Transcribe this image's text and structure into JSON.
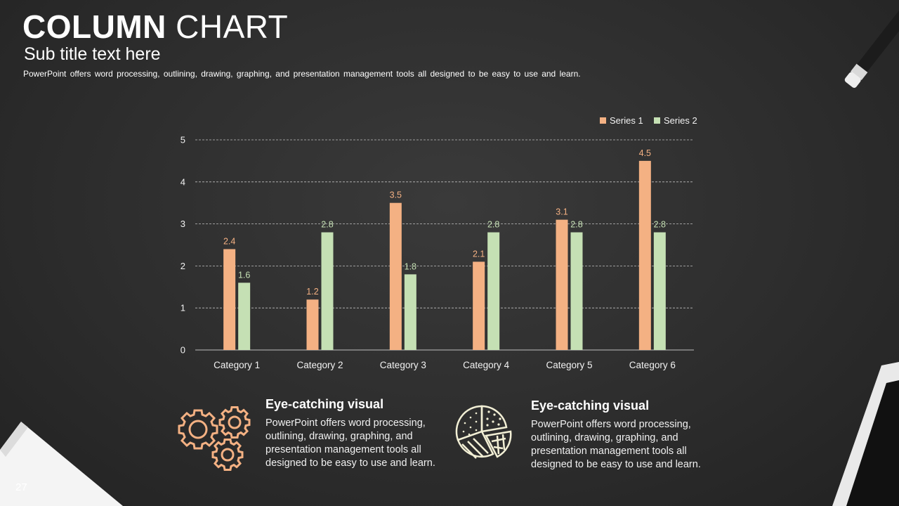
{
  "header": {
    "title_bold": "COLUMN",
    "title_light": "CHART",
    "subtitle": "Sub title text here",
    "description": "PowerPoint offers word processing, outlining, drawing, graphing, and presentation management tools all designed to be easy to use and learn."
  },
  "page_number": "27",
  "colors": {
    "series1": "#F4B183",
    "series2": "#C5E0B4",
    "grid": "#bfbfbf",
    "icon_gear": "#F4B183",
    "icon_pie": "#F2EFD5"
  },
  "chart_data": {
    "type": "bar",
    "categories": [
      "Category 1",
      "Category 2",
      "Category 3",
      "Category 4",
      "Category 5",
      "Category 6"
    ],
    "series": [
      {
        "name": "Series 1",
        "values": [
          2.4,
          1.2,
          3.5,
          2.1,
          3.1,
          4.5
        ]
      },
      {
        "name": "Series 2",
        "values": [
          1.6,
          2.8,
          1.8,
          2.8,
          2.8,
          2.8
        ]
      }
    ],
    "yticks": [
      0,
      1,
      2,
      3,
      4,
      5
    ],
    "ylim": [
      0,
      5
    ],
    "grid": true,
    "legend_position": "top-right",
    "title": "",
    "xlabel": "",
    "ylabel": ""
  },
  "features": [
    {
      "icon": "gears-icon",
      "heading": "Eye-catching visual",
      "body": "PowerPoint offers word processing, outlining, drawing, graphing, and presentation management tools all designed to be easy to use and learn."
    },
    {
      "icon": "pie-chart-icon",
      "heading": "Eye-catching visual",
      "body": "PowerPoint offers word processing, outlining, drawing, graphing, and presentation management tools all designed to be easy to use and learn."
    }
  ]
}
